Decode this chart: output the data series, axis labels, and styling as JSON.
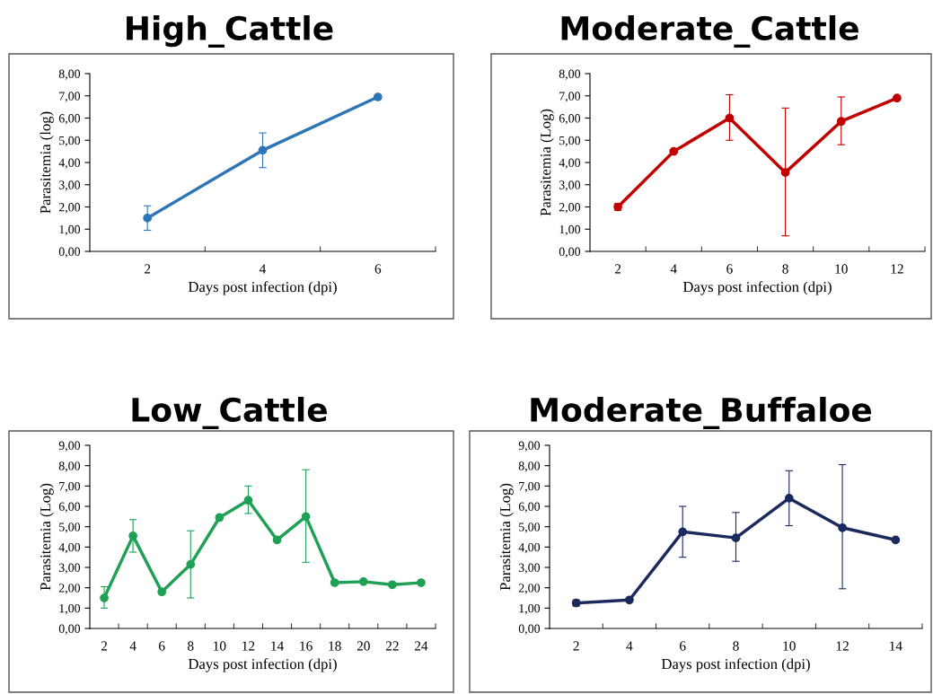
{
  "chart_data": [
    {
      "type": "line",
      "title": "High_Cattle",
      "xlabel": "Days post infection (dpi)",
      "ylabel": "Parasitemia (log)",
      "categories": [
        "2",
        "4",
        "6"
      ],
      "series": [
        {
          "color": "#2e75b6",
          "values": [
            1.5,
            4.55,
            6.95
          ],
          "errors": [
            0.55,
            0.78,
            null
          ]
        }
      ],
      "ylim": [
        0,
        8
      ],
      "yticks": [
        {
          "value": 0,
          "label": "0,00"
        },
        {
          "value": 1,
          "label": "1,00"
        },
        {
          "value": 2,
          "label": "2,00"
        },
        {
          "value": 3,
          "label": "3,00"
        },
        {
          "value": 4,
          "label": "4,00"
        },
        {
          "value": 5,
          "label": "5,00"
        },
        {
          "value": 6,
          "label": "6,00"
        },
        {
          "value": 7,
          "label": "7,00"
        },
        {
          "value": 8,
          "label": "8,00"
        }
      ],
      "grid": false,
      "marker": "circle",
      "line_style": "solid"
    },
    {
      "type": "line",
      "title": "Moderate_Cattle",
      "xlabel": "Days post infection (dpi)",
      "ylabel": "Parasitemia (Log)",
      "categories": [
        "2",
        "4",
        "6",
        "8",
        "10",
        "12"
      ],
      "series": [
        {
          "color": "#c00000",
          "values": [
            2.0,
            4.5,
            6.0,
            3.55,
            5.85,
            6.9
          ],
          "errors": [
            0.15,
            null,
            [
              5.0,
              7.05
            ],
            [
              0.7,
              6.45
            ],
            [
              4.8,
              6.95
            ],
            null
          ]
        }
      ],
      "ylim": [
        0,
        8
      ],
      "yticks": [
        {
          "value": 0,
          "label": "0,00"
        },
        {
          "value": 1,
          "label": "1,00"
        },
        {
          "value": 2,
          "label": "2,00"
        },
        {
          "value": 3,
          "label": "3,00"
        },
        {
          "value": 4,
          "label": "4,00"
        },
        {
          "value": 5,
          "label": "5,00"
        },
        {
          "value": 6,
          "label": "6,00"
        },
        {
          "value": 7,
          "label": "7,00"
        },
        {
          "value": 8,
          "label": "8,00"
        }
      ],
      "grid": false,
      "marker": "circle",
      "line_style": "solid"
    },
    {
      "type": "line",
      "title": "Low_Cattle",
      "xlabel": "Days post infection (dpi)",
      "ylabel": "Parasitemia (Log)",
      "categories": [
        "2",
        "4",
        "6",
        "8",
        "10",
        "12",
        "14",
        "16",
        "18",
        "20",
        "22",
        "24"
      ],
      "series": [
        {
          "color": "#1fa055",
          "values": [
            1.5,
            4.55,
            1.8,
            3.15,
            5.45,
            6.3,
            4.35,
            5.5,
            2.25,
            2.3,
            2.15,
            2.25
          ],
          "errors": [
            [
              1.0,
              2.05
            ],
            [
              3.75,
              5.35
            ],
            null,
            [
              1.5,
              4.8
            ],
            null,
            [
              5.65,
              7.0
            ],
            null,
            [
              3.25,
              7.8
            ],
            null,
            null,
            null,
            null
          ]
        }
      ],
      "ylim": [
        0,
        9
      ],
      "yticks": [
        {
          "value": 0,
          "label": "0,00"
        },
        {
          "value": 1,
          "label": "1,00"
        },
        {
          "value": 2,
          "label": "2,00"
        },
        {
          "value": 3,
          "label": "3,00"
        },
        {
          "value": 4,
          "label": "4,00"
        },
        {
          "value": 5,
          "label": "5,00"
        },
        {
          "value": 6,
          "label": "6,00"
        },
        {
          "value": 7,
          "label": "7,00"
        },
        {
          "value": 8,
          "label": "8,00"
        },
        {
          "value": 9,
          "label": "9,00"
        }
      ],
      "grid": false,
      "marker": "circle",
      "line_style": "solid"
    },
    {
      "type": "line",
      "title": "Moderate_Buffaloe",
      "xlabel": "Days post infection (dpi)",
      "ylabel": "Parasitemia (Log)",
      "categories": [
        "2",
        "4",
        "6",
        "8",
        "10",
        "12",
        "14"
      ],
      "series": [
        {
          "color": "#1a2a5e",
          "values": [
            1.25,
            1.4,
            4.75,
            4.45,
            6.4,
            4.95,
            4.35
          ],
          "errors": [
            [
              1.1,
              1.4
            ],
            null,
            [
              3.5,
              6.0
            ],
            [
              3.3,
              5.7
            ],
            [
              5.05,
              7.75
            ],
            [
              1.95,
              8.05
            ],
            null
          ]
        }
      ],
      "ylim": [
        0,
        9
      ],
      "yticks": [
        {
          "value": 0,
          "label": "0,00"
        },
        {
          "value": 1,
          "label": "1,00"
        },
        {
          "value": 2,
          "label": "2,00"
        },
        {
          "value": 3,
          "label": "3,00"
        },
        {
          "value": 4,
          "label": "4,00"
        },
        {
          "value": 5,
          "label": "5,00"
        },
        {
          "value": 6,
          "label": "6,00"
        },
        {
          "value": 7,
          "label": "7,00"
        },
        {
          "value": 8,
          "label": "8,00"
        },
        {
          "value": 9,
          "label": "9,00"
        }
      ],
      "grid": false,
      "marker": "circle",
      "line_style": "solid"
    }
  ]
}
